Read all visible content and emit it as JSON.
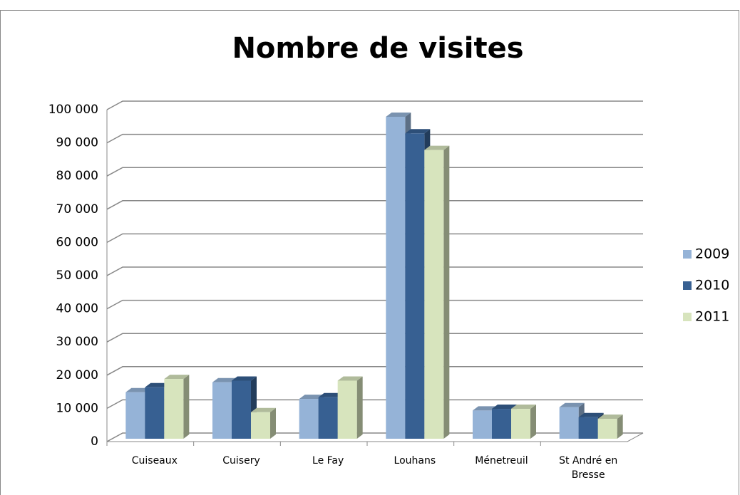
{
  "chart_data": {
    "type": "bar3d",
    "title": "Nombre de visites",
    "categories": [
      "Cuiseaux",
      "Cuisery",
      "Le Fay",
      "Louhans",
      "Ménetreuil",
      "St André en Bresse"
    ],
    "series": [
      {
        "name": "2009",
        "color": "#95b3d7",
        "values": [
          14000,
          17000,
          12000,
          97000,
          8500,
          9500
        ]
      },
      {
        "name": "2010",
        "color": "#376092",
        "values": [
          15500,
          17500,
          12500,
          92000,
          9000,
          6500
        ]
      },
      {
        "name": "2011",
        "color": "#d7e4bd",
        "values": [
          18000,
          8000,
          17500,
          87000,
          9000,
          6000
        ]
      }
    ],
    "ylim": [
      0,
      100000
    ],
    "yticks": [
      0,
      {
        "value": 10000,
        "label": "10 000"
      },
      {
        "value": 20000,
        "label": "20 000"
      },
      {
        "value": 30000,
        "label": "30 000"
      },
      {
        "value": 40000,
        "label": "40 000"
      },
      {
        "value": 50000,
        "label": "50 000"
      },
      {
        "value": 60000,
        "label": "60 000"
      },
      {
        "value": 70000,
        "label": "70 000"
      },
      {
        "value": 80000,
        "label": "80 000"
      },
      {
        "value": 90000,
        "label": "90 000"
      },
      {
        "value": 100000,
        "label": "100 000"
      }
    ],
    "grid": true,
    "legend": "right"
  }
}
